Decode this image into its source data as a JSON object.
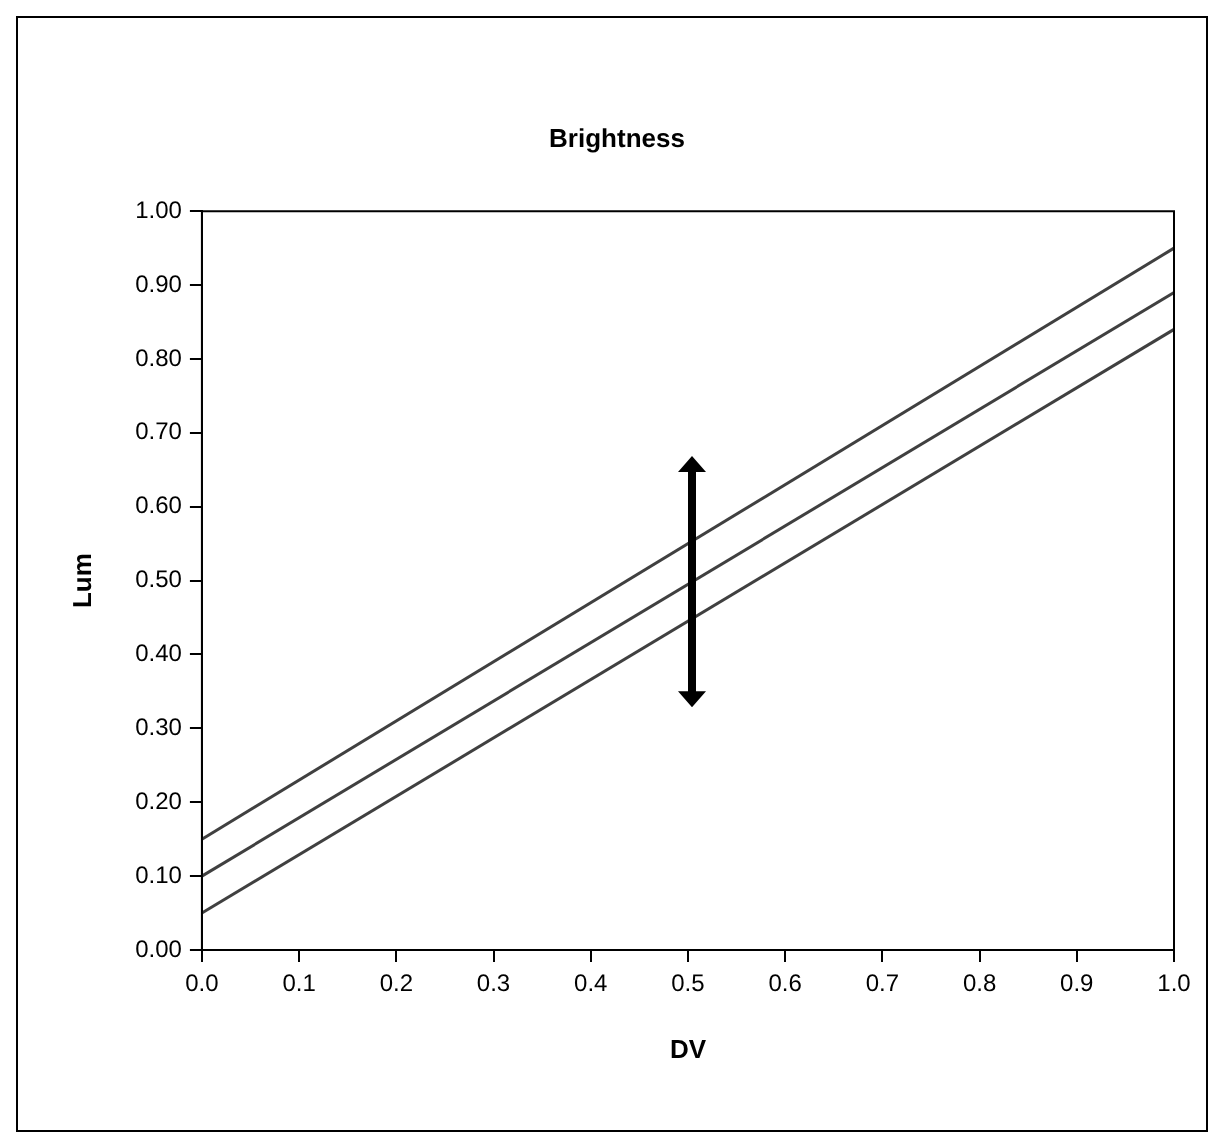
{
  "chart_data": {
    "type": "line",
    "title": "Brightness",
    "xlabel": "DV",
    "ylabel": "Lum",
    "x": [
      0,
      1
    ],
    "series": [
      {
        "color": "#404040",
        "values": [
          0.15,
          0.95
        ]
      },
      {
        "color": "#404040",
        "values": [
          0.1,
          0.89
        ]
      },
      {
        "color": "#404040",
        "values": [
          0.05,
          0.84
        ]
      }
    ],
    "xlim": [
      0,
      1
    ],
    "xticks": [
      {
        "value": 0,
        "label": "0.0"
      },
      {
        "value": 0.1,
        "label": "0.1"
      },
      {
        "value": 0.2,
        "label": "0.2"
      },
      {
        "value": 0.3,
        "label": "0.3"
      },
      {
        "value": 0.4,
        "label": "0.4"
      },
      {
        "value": 0.5,
        "label": "0.5"
      },
      {
        "value": 0.6,
        "label": "0.6"
      },
      {
        "value": 0.7,
        "label": "0.7"
      },
      {
        "value": 0.8,
        "label": "0.8"
      },
      {
        "value": 0.9,
        "label": "0.9"
      },
      {
        "value": 1,
        "label": "1.0"
      }
    ],
    "ylim": [
      0,
      1
    ],
    "yticks": [
      {
        "value": 0,
        "label": "0.00"
      },
      {
        "value": 0.1,
        "label": "0.10"
      },
      {
        "value": 0.2,
        "label": "0.20"
      },
      {
        "value": 0.3,
        "label": "0.30"
      },
      {
        "value": 0.4,
        "label": "0.40"
      },
      {
        "value": 0.5,
        "label": "0.50"
      },
      {
        "value": 0.6,
        "label": "0.60"
      },
      {
        "value": 0.7,
        "label": "0.70"
      },
      {
        "value": 0.8,
        "label": "0.80"
      },
      {
        "value": 0.9,
        "label": "0.90"
      },
      {
        "value": 1,
        "label": "1.00"
      }
    ],
    "grid": false,
    "legend": false,
    "marker": "none",
    "line_style": "solid"
  }
}
